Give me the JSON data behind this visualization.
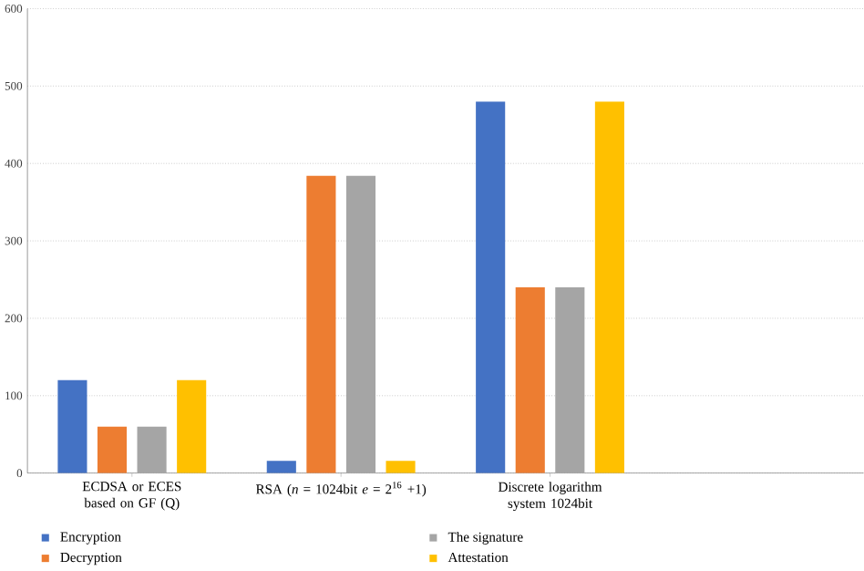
{
  "chart_data": {
    "type": "bar",
    "categories": [
      "ECDSA or ECES based on GF (Q)",
      "RSA (*n* = 1024bit *e* = 2$^{16}$ +1)",
      "Discrete logarithm system 1024bit",
      null
    ],
    "series": [
      {
        "name": "Encryption",
        "color": "#4472c4",
        "values": [
          120,
          16,
          480,
          null
        ]
      },
      {
        "name": "Decryption",
        "color": "#ed7d31",
        "values": [
          60,
          384,
          240,
          null
        ]
      },
      {
        "name": "The signature",
        "color": "#a5a5a5",
        "values": [
          60,
          384,
          240,
          null
        ]
      },
      {
        "name": "Attestation",
        "color": "#ffc000",
        "values": [
          120,
          16,
          480,
          null
        ]
      }
    ],
    "ylim": [
      0,
      600
    ],
    "yticks": [
      0,
      100,
      200,
      300,
      400,
      500,
      600
    ],
    "grid": "y",
    "legend": "bottom"
  }
}
